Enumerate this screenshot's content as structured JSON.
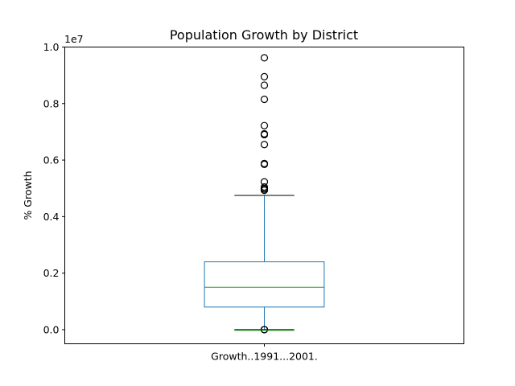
{
  "chart_data": {
    "type": "box",
    "title": "Population Growth by District",
    "xlabel": "",
    "ylabel": "% Growth",
    "offset_label": "1e7",
    "categories": [
      "Growth..1991...2001."
    ],
    "ylim": [
      -0.05,
      1.0
    ],
    "y_ticks": [
      0.0,
      0.2,
      0.4,
      0.6,
      0.8,
      1.0
    ],
    "y_tick_labels": [
      "0.0",
      "0.2",
      "0.4",
      "0.6",
      "0.8",
      "1.0"
    ],
    "grid": false,
    "legend": "none",
    "colors": {
      "box": "#1f77b4",
      "median": "#2ca02c",
      "outlier": "#000000",
      "cap": "#000000"
    },
    "boxes": [
      {
        "category": "Growth..1991...2001.",
        "whisker_low": 0.0,
        "q1": 0.08,
        "median": 0.15,
        "q3": 0.24,
        "whisker_high": 0.475,
        "outliers_high": [
          0.962,
          0.895,
          0.865,
          0.815,
          0.722,
          0.693,
          0.69,
          0.655,
          0.588,
          0.585,
          0.523,
          0.505,
          0.5,
          0.497,
          0.493
        ],
        "outliers_low": [
          0.0,
          0.0,
          0.0,
          0.0
        ]
      }
    ]
  }
}
